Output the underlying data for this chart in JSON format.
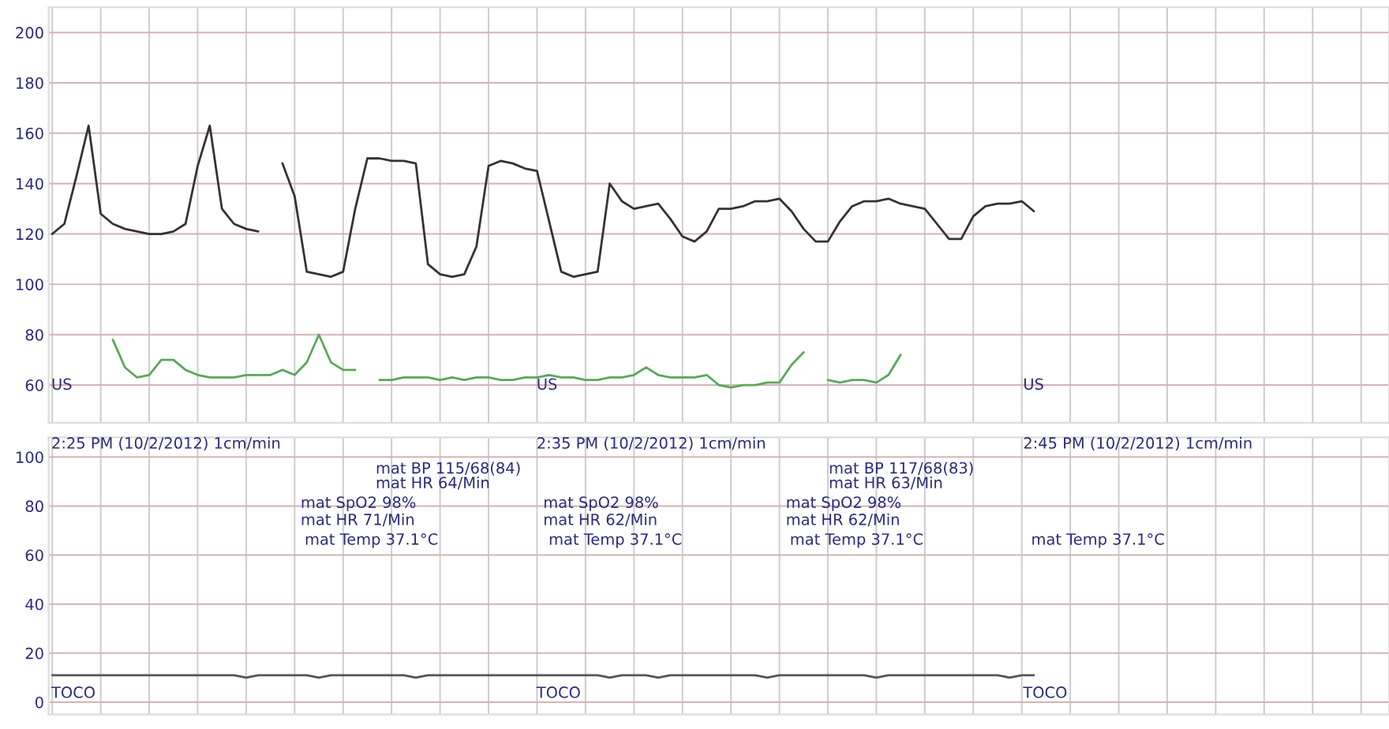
{
  "chart_data": [
    {
      "type": "line",
      "ylim": [
        45,
        210
      ],
      "yticks": [
        60,
        80,
        100,
        120,
        140,
        160,
        180,
        200
      ],
      "grid": true,
      "tick_labels": "y",
      "marker": "none",
      "line_style": "solid",
      "categories": [
        null,
        null,
        null,
        null,
        null,
        null,
        null,
        null,
        null,
        null,
        null,
        null,
        null,
        null,
        null,
        null,
        null,
        null,
        null,
        null,
        null,
        null,
        null,
        null,
        null,
        null,
        null,
        null,
        null,
        null,
        null,
        null,
        null,
        null,
        null,
        null,
        null,
        null,
        null,
        null,
        null,
        null,
        null,
        null,
        null,
        null,
        null,
        null,
        null,
        null,
        null,
        null,
        null,
        null,
        null,
        null,
        null,
        null,
        null,
        null,
        null,
        null,
        null,
        null,
        null,
        null,
        null,
        null,
        null,
        null,
        null,
        null,
        null,
        null,
        null,
        null,
        null,
        null,
        null,
        null,
        null,
        null,
        null,
        null,
        null,
        null,
        null,
        null,
        null,
        null,
        null,
        null,
        null,
        null,
        null,
        null,
        null,
        null,
        null,
        null,
        null,
        null,
        null,
        null,
        null,
        null,
        null,
        null,
        null,
        null,
        null
      ],
      "annotations": [
        "US",
        "US",
        "US"
      ],
      "series": [
        {
          "color": "#333333",
          "values": [
            120,
            124,
            143,
            163,
            128,
            124,
            122,
            121,
            120,
            120,
            121,
            124,
            147,
            163,
            130,
            124,
            122,
            121,
            null,
            null,
            null,
            null,
            null,
            null,
            null,
            null,
            null,
            null,
            null,
            null,
            null,
            null,
            null,
            null,
            null,
            null,
            null,
            null,
            null,
            null,
            null,
            null,
            null,
            null,
            null,
            null,
            null,
            null,
            null,
            null,
            null,
            null,
            null,
            null,
            null,
            null,
            null,
            null,
            null,
            null,
            null,
            null,
            null,
            null,
            null,
            null,
            null,
            null,
            null,
            null,
            null,
            null,
            null,
            null,
            null,
            null,
            null,
            null,
            null,
            null,
            null,
            null,
            null,
            null,
            null,
            null,
            null,
            null,
            null,
            null,
            null,
            null,
            null,
            null,
            null,
            null,
            null,
            null,
            null,
            null,
            null,
            null,
            null,
            null,
            null,
            null,
            null,
            null,
            null,
            null,
            null
          ]
        },
        {
          "color": "#333333",
          "values": [
            null,
            null,
            null,
            null,
            null,
            null,
            null,
            null,
            null,
            null,
            null,
            null,
            null,
            null,
            null,
            null,
            null,
            null,
            null,
            148,
            135,
            105,
            104,
            103,
            105,
            130,
            150,
            150,
            149,
            149,
            148,
            108,
            104,
            103,
            104,
            115,
            147,
            149,
            148,
            146,
            145,
            125,
            105,
            103,
            104,
            105,
            140,
            133,
            130,
            131,
            132,
            126,
            119,
            117,
            121,
            130,
            130,
            131,
            133,
            133,
            134,
            129,
            122,
            117,
            117,
            125,
            131,
            133,
            133,
            134,
            132,
            131,
            130,
            124,
            118,
            118,
            127,
            131,
            132,
            132,
            133,
            129,
            null,
            null,
            null,
            null,
            null,
            null,
            null,
            null,
            null,
            null,
            null,
            null,
            null,
            null,
            null,
            null,
            null,
            null,
            null,
            null,
            null,
            null,
            null,
            null,
            null,
            null,
            null,
            null,
            null
          ]
        },
        {
          "color": "#5aa85a",
          "values": [
            null,
            null,
            null,
            null,
            null,
            78,
            67,
            63,
            64,
            70,
            70,
            66,
            64,
            63,
            63,
            63,
            64,
            64,
            64,
            66,
            64,
            69,
            80,
            69,
            66,
            66,
            null,
            null,
            null,
            null,
            null,
            null,
            null,
            null,
            null,
            null,
            null,
            null,
            null,
            null,
            null,
            null,
            null,
            null,
            null,
            null,
            null,
            null,
            null,
            null,
            null,
            null,
            null,
            null,
            null,
            null,
            null,
            null,
            null,
            null,
            null,
            null,
            null,
            null,
            null,
            null,
            null,
            null,
            null,
            null,
            null,
            null,
            null,
            null,
            null,
            null,
            null,
            null,
            null,
            null,
            null,
            null,
            null,
            null,
            null,
            null,
            null,
            null,
            null,
            null,
            null,
            null,
            null,
            null,
            null,
            null,
            null,
            null,
            null,
            null,
            null,
            null,
            null,
            null,
            null,
            null,
            null,
            null,
            null,
            null,
            null
          ]
        },
        {
          "color": "#5aa85a",
          "values": [
            null,
            null,
            null,
            null,
            null,
            null,
            null,
            null,
            null,
            null,
            null,
            null,
            null,
            null,
            null,
            null,
            null,
            null,
            null,
            null,
            null,
            null,
            null,
            null,
            null,
            null,
            null,
            62,
            62,
            63,
            63,
            63,
            62,
            63,
            62,
            63,
            63,
            62,
            62,
            63,
            63,
            64,
            63,
            63,
            62,
            62,
            63,
            63,
            64,
            67,
            64,
            63,
            63,
            63,
            64,
            60,
            59,
            60,
            60,
            61,
            61,
            68,
            73,
            null,
            null,
            null,
            null,
            null,
            null,
            null,
            null,
            null,
            null,
            null,
            null,
            null,
            null,
            null,
            null,
            null,
            null,
            null,
            null,
            null,
            null,
            null,
            null,
            null,
            null,
            null,
            null,
            null,
            null,
            null,
            null,
            null,
            null,
            null,
            null,
            null,
            null,
            null,
            null,
            null,
            null,
            null,
            null,
            null,
            null,
            null,
            null
          ]
        },
        {
          "color": "#5aa85a",
          "values": [
            null,
            null,
            null,
            null,
            null,
            null,
            null,
            null,
            null,
            null,
            null,
            null,
            null,
            null,
            null,
            null,
            null,
            null,
            null,
            null,
            null,
            null,
            null,
            null,
            null,
            null,
            null,
            null,
            null,
            null,
            null,
            null,
            null,
            null,
            null,
            null,
            null,
            null,
            null,
            null,
            null,
            null,
            null,
            null,
            null,
            null,
            null,
            null,
            null,
            null,
            null,
            null,
            null,
            null,
            null,
            null,
            null,
            null,
            null,
            null,
            null,
            null,
            null,
            null,
            62,
            61,
            62,
            62,
            61,
            64,
            72,
            null,
            null,
            null,
            null,
            null,
            null,
            null,
            null,
            null,
            null,
            null,
            null,
            null,
            null,
            null,
            null,
            null,
            null,
            null,
            null,
            null,
            null,
            null,
            null,
            null,
            null,
            null,
            null,
            null,
            null,
            null,
            null,
            null,
            null,
            null,
            null,
            null,
            null,
            null,
            null
          ]
        }
      ]
    },
    {
      "type": "line",
      "ylim": [
        -5,
        108
      ],
      "yticks": [
        0,
        20,
        40,
        60,
        80,
        100
      ],
      "grid": true,
      "tick_labels": "y",
      "marker": "none",
      "line_style": "solid",
      "categories": [
        null,
        null,
        null,
        null,
        null,
        null,
        null,
        null,
        null,
        null,
        null,
        null,
        null,
        null,
        null,
        null,
        null,
        null,
        null,
        null,
        null,
        null,
        null,
        null,
        null,
        null,
        null,
        null,
        null,
        null,
        null,
        null,
        null,
        null,
        null,
        null,
        null,
        null,
        null,
        null,
        null,
        null,
        null,
        null,
        null,
        null,
        null,
        null,
        null,
        null,
        null,
        null,
        null,
        null,
        null,
        null,
        null,
        null,
        null,
        null,
        null,
        null,
        null,
        null,
        null,
        null,
        null,
        null,
        null,
        null,
        null,
        null,
        null,
        null,
        null,
        null,
        null,
        null,
        null,
        null,
        null,
        null,
        null,
        null,
        null,
        null,
        null,
        null,
        null,
        null,
        null,
        null,
        null,
        null,
        null,
        null,
        null,
        null,
        null,
        null,
        null,
        null,
        null,
        null,
        null,
        null,
        null,
        null,
        null,
        null,
        null
      ],
      "annotations": [
        "2:25 PM (10/2/2012) 1cm/min",
        "2:35 PM (10/2/2012) 1cm/min",
        "2:45 PM (10/2/2012) 1cm/min",
        "mat BP 115/68(84)",
        "mat HR 64/Min",
        "mat SpO2 98%",
        "mat HR 71/Min",
        "mat Temp 37.1°C",
        "mat SpO2 98%",
        "mat HR 62/Min",
        "mat Temp 37.1°C",
        "mat BP 117/68(83)",
        "mat HR 63/Min",
        "mat SpO2 98%",
        "mat HR 62/Min",
        "mat Temp 37.1°C",
        "mat Temp 37.1°C",
        "TOCO",
        "TOCO",
        "TOCO"
      ],
      "series": [
        {
          "color": "#555555",
          "values": [
            11,
            11,
            11,
            11,
            11,
            11,
            11,
            11,
            11,
            11,
            11,
            11,
            11,
            11,
            11,
            11,
            10,
            11,
            11,
            11,
            11,
            11,
            10,
            11,
            11,
            11,
            11,
            11,
            11,
            11,
            10,
            11,
            11,
            11,
            11,
            11,
            11,
            11,
            11,
            11,
            11,
            11,
            11,
            11,
            11,
            11,
            10,
            11,
            11,
            11,
            10,
            11,
            11,
            11,
            11,
            11,
            11,
            11,
            11,
            10,
            11,
            11,
            11,
            11,
            11,
            11,
            11,
            11,
            10,
            11,
            11,
            11,
            11,
            11,
            11,
            11,
            11,
            11,
            11,
            10,
            11,
            11,
            null,
            null,
            null,
            null,
            null,
            null,
            null,
            null,
            null,
            null,
            null,
            null,
            null,
            null,
            null,
            null,
            null,
            null,
            null,
            null,
            null,
            null,
            null,
            null,
            null,
            null,
            null,
            null,
            null
          ]
        }
      ]
    }
  ]
}
